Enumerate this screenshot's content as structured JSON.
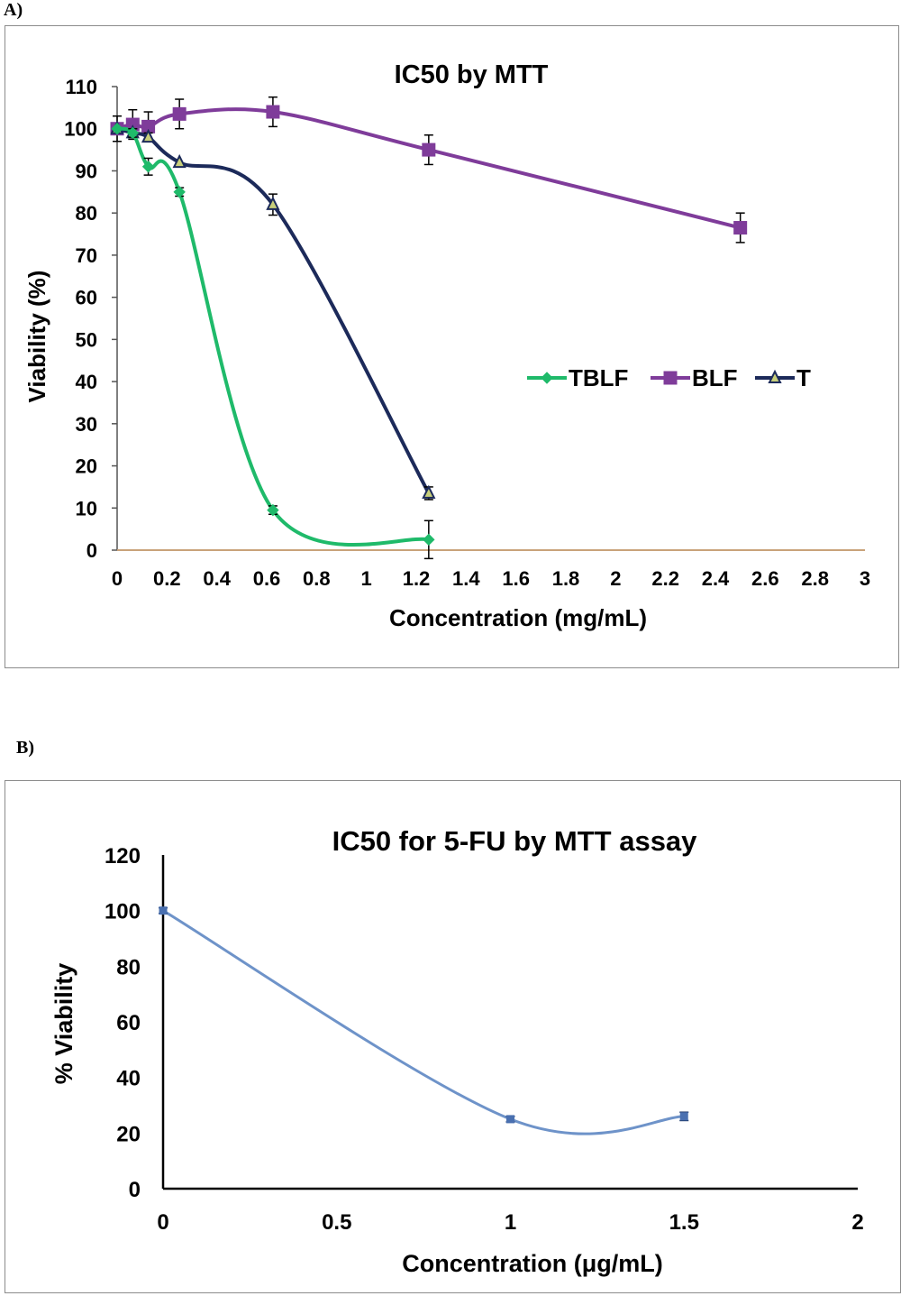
{
  "panels": {
    "a_label": "A)",
    "b_label": "B)"
  },
  "colors": {
    "tblf": "#1fba6a",
    "blf": "#7f3c9a",
    "t": "#1c2a5a",
    "fu": "#6e93c9",
    "axis_a": "#c9a27a",
    "axis_b": "#000000"
  },
  "chart_data": [
    {
      "type": "line",
      "title": "IC50 by MTT",
      "xlabel": "Concentration (mg/mL)",
      "ylabel": "Viability (%)",
      "xlim": [
        0,
        3
      ],
      "ylim": [
        0,
        110
      ],
      "xticks": [
        "0",
        "0.2",
        "0.4",
        "0.6",
        "0.8",
        "1",
        "1.2",
        "1.4",
        "1.6",
        "1.8",
        "2",
        "2.2",
        "2.4",
        "2.6",
        "2.8",
        "3"
      ],
      "yticks": [
        "0",
        "10",
        "20",
        "30",
        "40",
        "50",
        "60",
        "70",
        "80",
        "90",
        "100",
        "110"
      ],
      "legend_position": "center-right",
      "series": [
        {
          "name": "TBLF",
          "marker": "diamond",
          "x": [
            0,
            0.0625,
            0.125,
            0.25,
            0.625,
            1.25
          ],
          "y": [
            100,
            99,
            91,
            85,
            9.5,
            2.5
          ],
          "err": [
            0,
            1,
            2,
            1,
            1,
            4.5
          ]
        },
        {
          "name": "BLF",
          "marker": "square",
          "x": [
            0,
            0.0625,
            0.125,
            0.25,
            0.625,
            1.25,
            2.5
          ],
          "y": [
            100,
            101,
            100.5,
            103.5,
            104,
            95,
            76.5
          ],
          "err": [
            3,
            3.5,
            3.5,
            3.5,
            3.5,
            3.5,
            3.5
          ]
        },
        {
          "name": "T",
          "marker": "triangle",
          "x": [
            0,
            0.0625,
            0.125,
            0.25,
            0.625,
            1.25
          ],
          "y": [
            100,
            99,
            98,
            92,
            82,
            13.5
          ],
          "err": [
            0,
            1,
            1,
            0,
            2.5,
            1.5
          ]
        }
      ]
    },
    {
      "type": "line",
      "title": "IC50 for 5-FU by MTT assay",
      "xlabel": "Concentration (μg/mL)",
      "ylabel": "% Viability",
      "xlim": [
        0,
        2
      ],
      "ylim": [
        0,
        120
      ],
      "xticks": [
        "0",
        "0.5",
        "1",
        "1.5",
        "2"
      ],
      "yticks": [
        "0",
        "20",
        "40",
        "60",
        "80",
        "100",
        "120"
      ],
      "series": [
        {
          "name": "",
          "marker": "square",
          "x": [
            0,
            1,
            1.5
          ],
          "y": [
            100,
            25,
            26
          ],
          "err": [
            1,
            1,
            1.5
          ]
        }
      ]
    }
  ]
}
